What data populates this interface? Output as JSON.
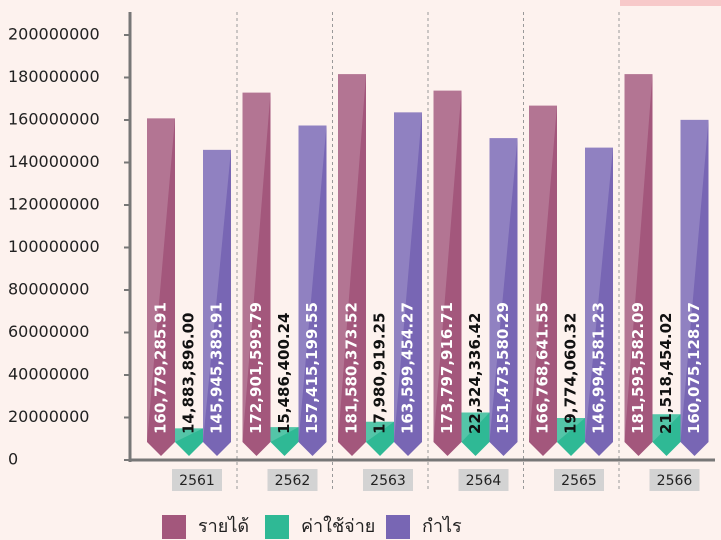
{
  "chart_data": {
    "type": "bar",
    "categories": [
      "2561",
      "2562",
      "2563",
      "2564",
      "2565",
      "2566"
    ],
    "series": [
      {
        "name": "รายได้",
        "color": "#a3577c",
        "values": [
          160779285.91,
          172901599.79,
          181580373.52,
          173797916.71,
          166768641.55,
          181593582.09
        ],
        "value_labels": [
          "160,779,285.91",
          "172,901,599.79",
          "181,580,373.52",
          "173,797,916.71",
          "166,768,641.55",
          "181,593,582.09"
        ]
      },
      {
        "name": "ค่าใช้จ่าย",
        "color": "#2fb995",
        "values": [
          14883896.0,
          15486400.24,
          17980919.25,
          22324336.42,
          19774060.32,
          21518454.02
        ],
        "value_labels": [
          "14,883,896.00",
          "15,486,400.24",
          "17,980,919.25",
          "22,324,336.42",
          "19,774,060.32",
          "21,518,454.02"
        ]
      },
      {
        "name": "กำไร",
        "color": "#7866b4",
        "values": [
          145945389.91,
          157415199.55,
          163599454.27,
          151473580.29,
          146994581.23,
          160075128.07
        ],
        "value_labels": [
          "145,945,389.91",
          "157,415,199.55",
          "163,599,454.27",
          "151,473,580.29",
          "146,994,581.23",
          "160,075,128.07"
        ]
      }
    ],
    "ylim": [
      0,
      200000000
    ],
    "yticks": [
      0,
      20000000,
      40000000,
      60000000,
      80000000,
      100000000,
      120000000,
      140000000,
      160000000,
      180000000,
      200000000
    ]
  }
}
